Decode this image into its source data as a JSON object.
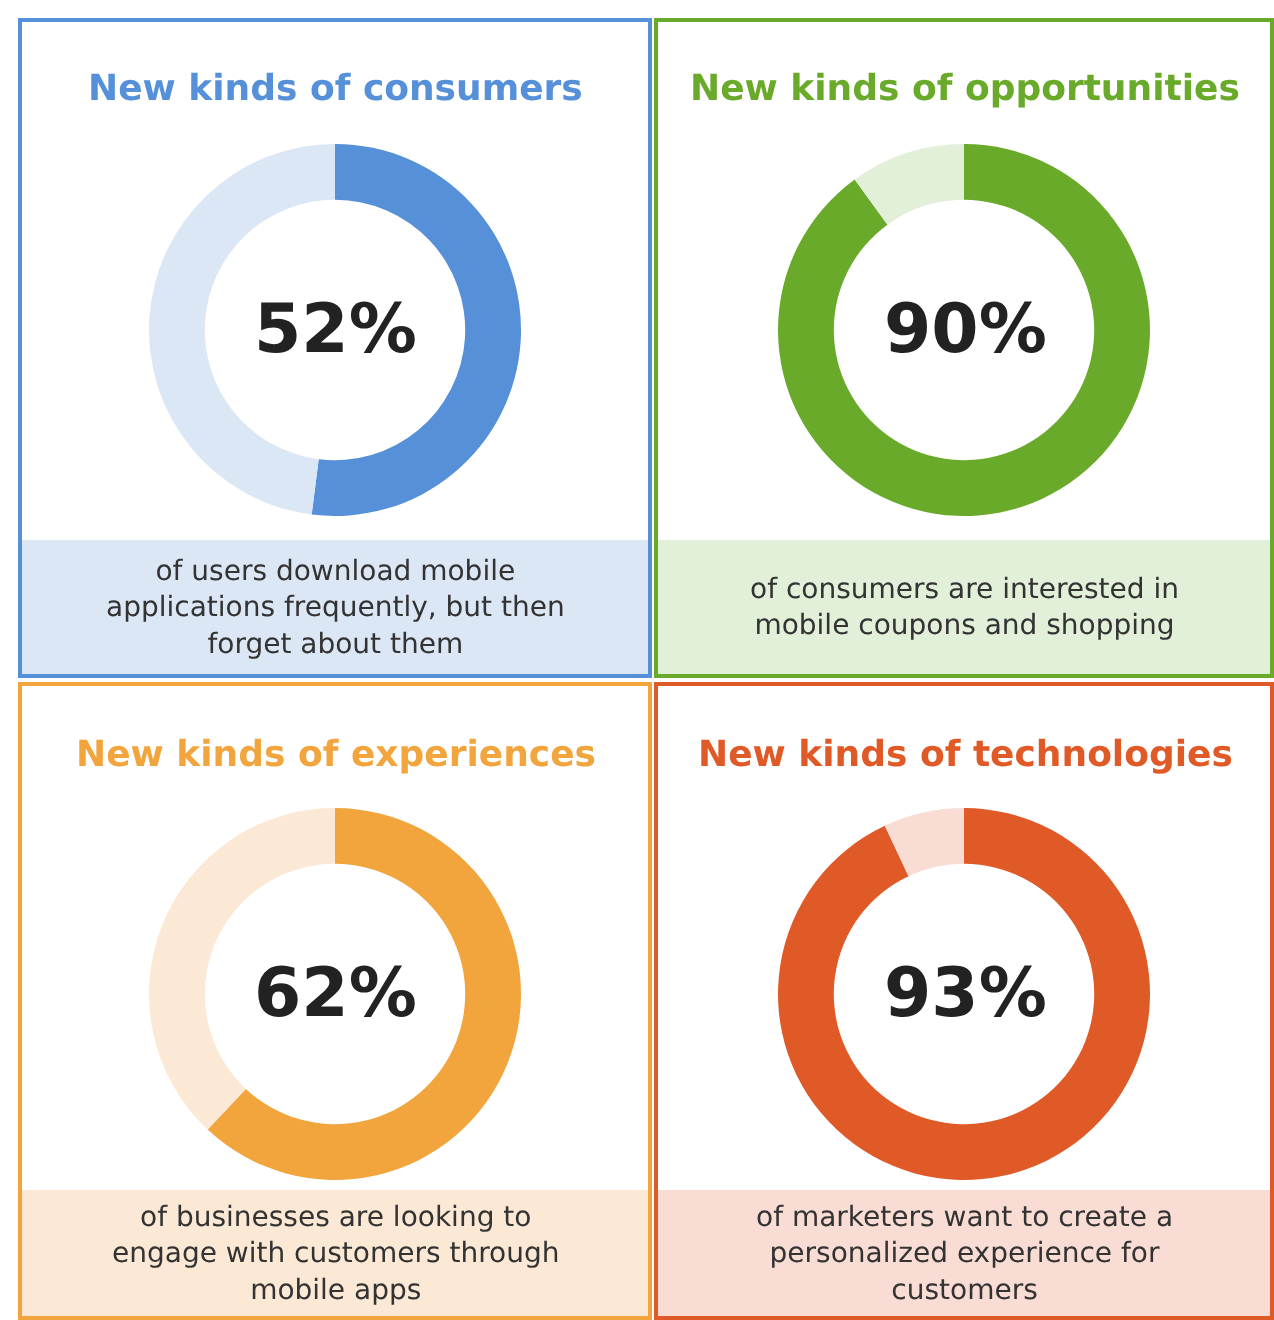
{
  "chart_data": [
    {
      "type": "donut",
      "title": "New kinds of consumers",
      "categories": [
        null,
        null
      ],
      "values": [
        52,
        48
      ],
      "colors": [
        "#5590d9",
        "#dce7f5"
      ],
      "annotations": [
        "52%",
        "of users download mobile applications frequently, but then forget about them"
      ]
    },
    {
      "type": "donut",
      "title": "New kinds of opportunities",
      "categories": [
        null,
        null
      ],
      "values": [
        90,
        10
      ],
      "colors": [
        "#6aaa2a",
        "#e2efd9"
      ],
      "annotations": [
        "90%",
        "of consumers are interested in mobile coupons and shopping"
      ]
    },
    {
      "type": "donut",
      "title": "New kinds of experiences",
      "categories": [
        null,
        null
      ],
      "values": [
        62,
        38
      ],
      "colors": [
        "#f2a53d",
        "#fbe9d5"
      ],
      "annotations": [
        "62%",
        "of businesses are looking to engage with customers through mobile apps"
      ]
    },
    {
      "type": "donut",
      "title": "New kinds of technologies",
      "categories": [
        null,
        null
      ],
      "values": [
        93,
        7
      ],
      "colors": [
        "#e05a28",
        "#f9dcd4"
      ],
      "annotations": [
        "93%",
        "of marketers want to create a personalized experience for customers"
      ]
    }
  ]
}
